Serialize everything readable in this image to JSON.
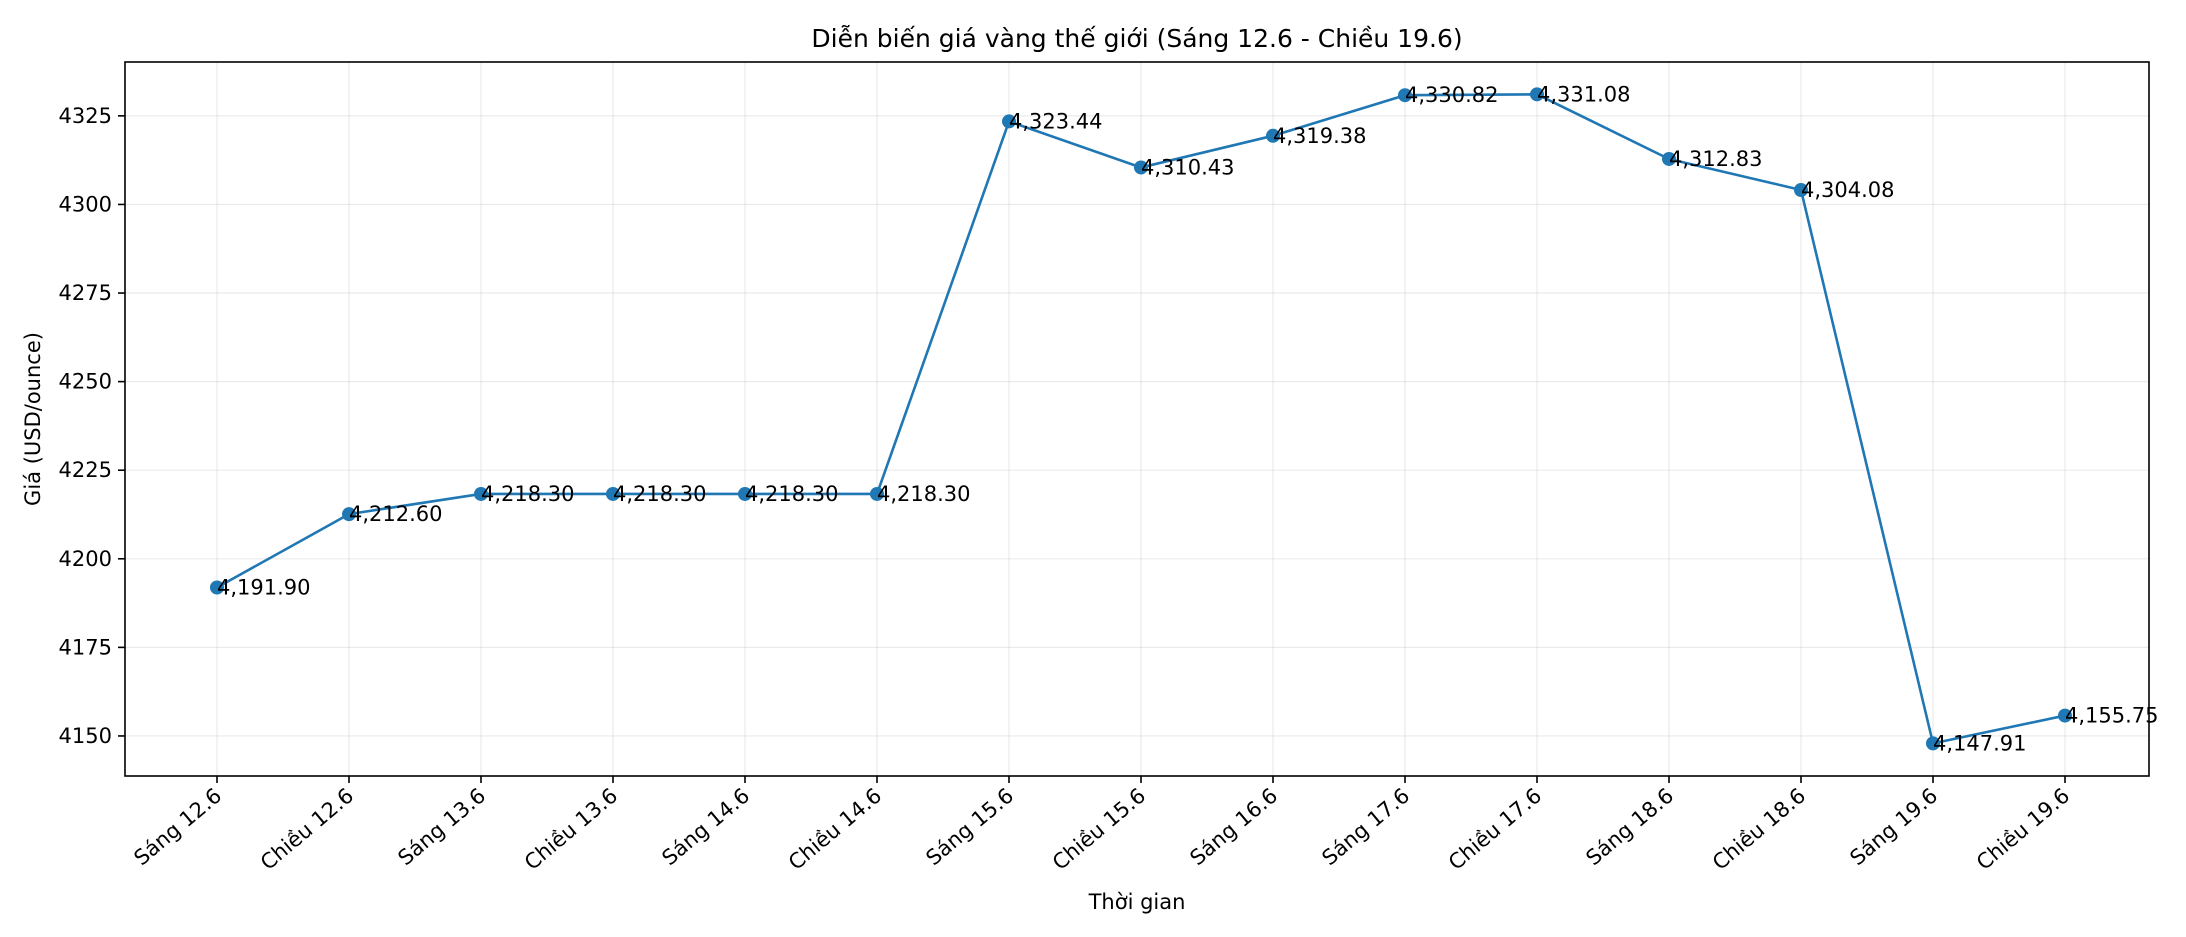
{
  "chart_data": {
    "type": "line",
    "title": "Diễn biến giá vàng thế giới (Sáng 12.6 - Chiều 19.6)",
    "xlabel": "Thời gian",
    "ylabel": "Giá (USD/ounce)",
    "categories": [
      "Sáng 12.6",
      "Chiều 12.6",
      "Sáng 13.6",
      "Chiều 13.6",
      "Sáng 14.6",
      "Chiều 14.6",
      "Sáng 15.6",
      "Chiều 15.6",
      "Sáng 16.6",
      "Sáng 17.6",
      "Chiều 17.6",
      "Sáng 18.6",
      "Chiều 18.6",
      "Sáng 19.6",
      "Chiều 19.6"
    ],
    "values": [
      4191.9,
      4212.6,
      4218.3,
      4218.3,
      4218.3,
      4218.3,
      4323.44,
      4310.43,
      4319.38,
      4330.82,
      4331.08,
      4312.83,
      4304.08,
      4147.91,
      4155.75
    ],
    "data_labels": [
      "4,191.90",
      "4,212.60",
      "4,218.30",
      "4,218.30",
      "4,218.30",
      "4,218.30",
      "4,323.44",
      "4,310.43",
      "4,319.38",
      "4,330.82",
      "4,331.08",
      "4,312.83",
      "4,304.08",
      "4,147.91",
      "4,155.75"
    ],
    "yticks": [
      4150,
      4175,
      4200,
      4225,
      4250,
      4275,
      4300,
      4325
    ],
    "ylim": [
      4138.7,
      4340.2
    ],
    "grid": true,
    "line_color": "#1f77b4"
  }
}
